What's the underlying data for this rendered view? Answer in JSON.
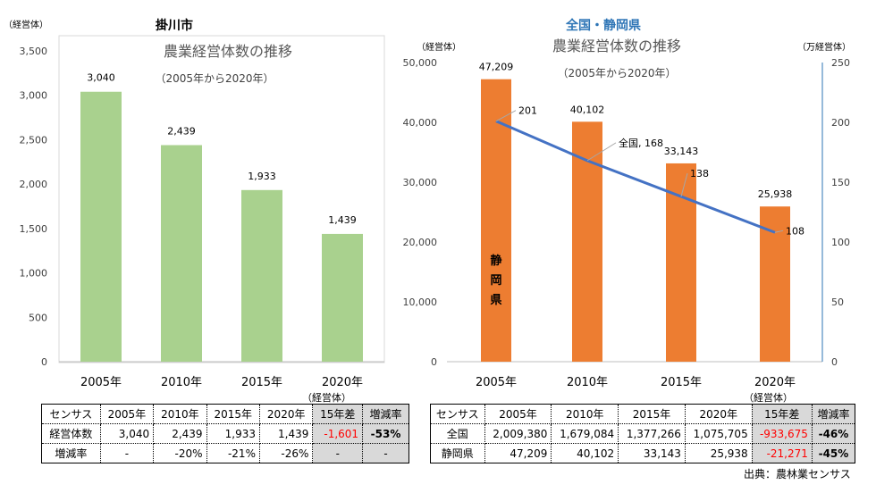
{
  "chart_data": [
    {
      "type": "bar",
      "title": "掛川市",
      "subtitle": "農業経営体数の推移",
      "note": "（2005年から2020年）",
      "ylabel": "（経営体）",
      "categories": [
        "2005年",
        "2010年",
        "2015年",
        "2020年"
      ],
      "values": [
        3040,
        2439,
        1933,
        1439
      ],
      "value_labels": [
        "3,040",
        "2,439",
        "1,933",
        "1,439"
      ],
      "ylim": [
        0,
        3500
      ],
      "yticks": [
        "0",
        "500",
        "1,000",
        "1,500",
        "2,000",
        "2,500",
        "3,000",
        "3,500"
      ],
      "color": "#a9d18e",
      "grid": false
    },
    {
      "type": "bar+line",
      "title": "全国・静岡県",
      "subtitle": "農業経営体数の推移",
      "note": "（2005年から2020年）",
      "ylabel": "（経営体）",
      "y2label": "（万経営体）",
      "categories": [
        "2005年",
        "2010年",
        "2015年",
        "2020年"
      ],
      "series": [
        {
          "name": "静岡県",
          "type": "bar",
          "axis": "left",
          "values": [
            47209,
            40102,
            33143,
            25938
          ],
          "value_labels": [
            "47,209",
            "40,102",
            "33,143",
            "25,938"
          ],
          "color": "#ed7d31"
        },
        {
          "name": "全国",
          "type": "line",
          "axis": "right",
          "values": [
            201,
            168,
            138,
            108
          ],
          "value_labels": [
            "201",
            "全国, 168",
            "138",
            "108"
          ],
          "color": "#4472c4"
        }
      ],
      "ylim": [
        0,
        50000
      ],
      "yticks": [
        "0",
        "10,000",
        "20,000",
        "30,000",
        "40,000",
        "50,000"
      ],
      "y2lim": [
        0,
        250
      ],
      "y2ticks": [
        "0",
        "50",
        "100",
        "150",
        "200",
        "250"
      ],
      "grid": false
    }
  ],
  "table1": {
    "unit": "（経営体）",
    "header": [
      "センサス",
      "2005年",
      "2010年",
      "2015年",
      "2020年",
      "15年差",
      "増減率"
    ],
    "rows": [
      [
        "経営体数",
        "3,040",
        "2,439",
        "1,933",
        "1,439",
        "-1,601",
        "-53%"
      ],
      [
        "増減率",
        "-",
        "-20%",
        "-21%",
        "-26%",
        "-",
        "-"
      ]
    ]
  },
  "table2": {
    "unit": "（経営体）",
    "header": [
      "センサス",
      "2005年",
      "2010年",
      "2015年",
      "2020年",
      "15年差",
      "増減率"
    ],
    "rows": [
      [
        "全国",
        "2,009,380",
        "1,679,084",
        "1,377,266",
        "1,075,705",
        "-933,675",
        "-46%"
      ],
      [
        "静岡県",
        "47,209",
        "40,102",
        "33,143",
        "25,938",
        "-21,271",
        "-45%"
      ]
    ]
  },
  "source": "出典：農林業センサス"
}
